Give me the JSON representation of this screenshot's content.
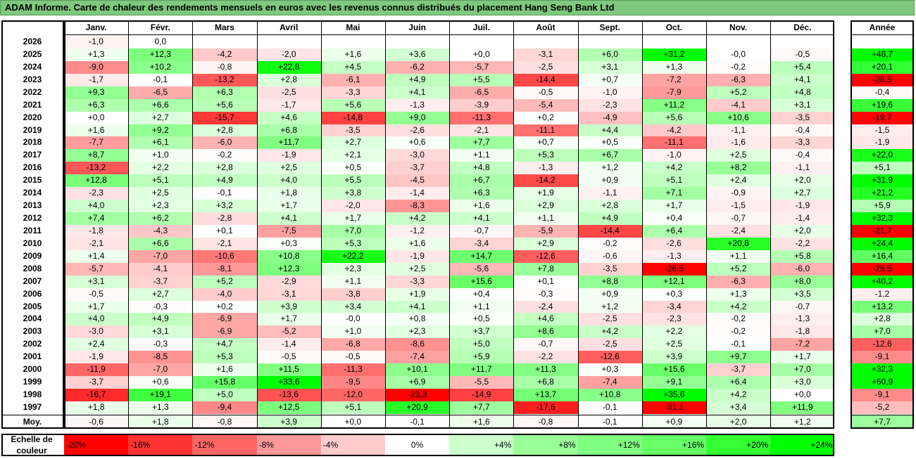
{
  "title": "ADAM Informe. Carte de chaleur des rendements mensuels en euros avec les revenus connus distribués du placement Hang Seng Bank Ltd",
  "chart_data": {
    "type": "heatmap",
    "title": "ADAM Informe. Carte de chaleur des rendements mensuels en euros avec les revenus connus distribués du placement Hang Seng Bank Ltd",
    "columns": [
      "Janv.",
      "Févr.",
      "Mars",
      "Avril",
      "Mai",
      "Juin",
      "Juil.",
      "Août",
      "Sept.",
      "Oct.",
      "Nov.",
      "Déc."
    ],
    "year_column": "Année",
    "rows": [
      {
        "year": "2026",
        "values": [
          "-1,0",
          "0,0",
          "",
          "",
          "",
          "",
          "",
          "",
          "",
          "",
          "",
          ""
        ],
        "annual": ""
      },
      {
        "year": "2025",
        "values": [
          "+1,3",
          "+12,3",
          "-4,2",
          "-2,0",
          "+1,6",
          "+3,6",
          "+0,0",
          "-3,1",
          "+6,0",
          "+31,2",
          "-0,0",
          "-0,5"
        ],
        "annual": "+48,7"
      },
      {
        "year": "2024",
        "values": [
          "-9,0",
          "+10,2",
          "-0,8",
          "+22,8",
          "+4,5",
          "-6,2",
          "-5,7",
          "-2,5",
          "+3,1",
          "+1,3",
          "-0,2",
          "+5,4"
        ],
        "annual": "+20,1"
      },
      {
        "year": "2023",
        "values": [
          "-1,7",
          "-0,1",
          "-13,2",
          "+2,8",
          "-6,1",
          "+4,9",
          "+5,5",
          "-14,4",
          "+0,7",
          "-7,2",
          "-6,3",
          "+4,1"
        ],
        "annual": "-28,5"
      },
      {
        "year": "2022",
        "values": [
          "+9,3",
          "-6,5",
          "+6,3",
          "-2,5",
          "-3,3",
          "+4,1",
          "-6,5",
          "-0,5",
          "-1,0",
          "-7,9",
          "+5,2",
          "+4,8"
        ],
        "annual": "-0,4"
      },
      {
        "year": "2021",
        "values": [
          "+6,3",
          "+6,6",
          "+5,6",
          "-1,7",
          "+5,6",
          "-1,3",
          "-3,9",
          "-5,4",
          "-2,3",
          "+11,2",
          "-4,1",
          "+3,1"
        ],
        "annual": "+19,6"
      },
      {
        "year": "2020",
        "values": [
          "+0,0",
          "+2,7",
          "-15,7",
          "+4,6",
          "-14,8",
          "+9,0",
          "-11,3",
          "+0,2",
          "-4,9",
          "+5,6",
          "+10,6",
          "-3,5"
        ],
        "annual": "-19,7"
      },
      {
        "year": "2019",
        "values": [
          "+1,6",
          "+9,2",
          "+2,8",
          "+6,8",
          "-3,5",
          "-2,6",
          "-2,1",
          "-11,1",
          "+4,4",
          "-4,2",
          "-1,1",
          "-0,4"
        ],
        "annual": "-1,5"
      },
      {
        "year": "2018",
        "values": [
          "-7,7",
          "+6,1",
          "-6,0",
          "+11,7",
          "+2,7",
          "+0,6",
          "+7,7",
          "+0,7",
          "+0,5",
          "-11,1",
          "-1,6",
          "-3,3"
        ],
        "annual": "-1,9"
      },
      {
        "year": "2017",
        "values": [
          "+8,7",
          "+1,0",
          "-0,2",
          "-1,9",
          "+2,1",
          "-3,0",
          "+1,1",
          "+5,3",
          "+6,7",
          "-1,0",
          "+2,5",
          "-0,4"
        ],
        "annual": "+22,0"
      },
      {
        "year": "2016",
        "values": [
          "-13,2",
          "+2,2",
          "+2,8",
          "+2,5",
          "+0,5",
          "-3,7",
          "+4,8",
          "-1,3",
          "+1,2",
          "+4,2",
          "+8,2",
          "-1,1"
        ],
        "annual": "+5,1"
      },
      {
        "year": "2015",
        "values": [
          "+12,8",
          "+5,1",
          "+4,9",
          "+4,0",
          "+5,5",
          "-4,5",
          "+6,7",
          "-14,2",
          "+0,9",
          "+5,1",
          "+2,4",
          "+2,0"
        ],
        "annual": "+31,9"
      },
      {
        "year": "2014",
        "values": [
          "-2,3",
          "+2,5",
          "-0,1",
          "+1,8",
          "+3,8",
          "-1,4",
          "+6,3",
          "+1,9",
          "-1,1",
          "+7,1",
          "-0,9",
          "+2,7"
        ],
        "annual": "+21,2"
      },
      {
        "year": "2013",
        "values": [
          "+4,0",
          "+2,3",
          "+3,2",
          "+1,7",
          "-2,0",
          "-8,3",
          "+1,6",
          "+2,9",
          "+2,8",
          "+1,7",
          "-1,5",
          "-1,9"
        ],
        "annual": "+5,9"
      },
      {
        "year": "2012",
        "values": [
          "+7,4",
          "+6,2",
          "-2,8",
          "+4,1",
          "+1,7",
          "+4,2",
          "+4,1",
          "+1,1",
          "+4,9",
          "+0,4",
          "-0,7",
          "-1,4"
        ],
        "annual": "+32,3"
      },
      {
        "year": "2011",
        "values": [
          "-1,8",
          "-4,3",
          "+0,1",
          "-7,5",
          "+7,0",
          "-1,2",
          "-0,7",
          "-5,9",
          "-14,4",
          "+6,4",
          "-2,4",
          "+2,0"
        ],
        "annual": "-21,7"
      },
      {
        "year": "2010",
        "values": [
          "-2,1",
          "+6,6",
          "-2,1",
          "+0,3",
          "+5,3",
          "+1,6",
          "-3,4",
          "+2,9",
          "-0,2",
          "-2,6",
          "+20,8",
          "-2,2"
        ],
        "annual": "+24,4"
      },
      {
        "year": "2009",
        "values": [
          "+1,4",
          "-7,0",
          "-10,6",
          "+10,8",
          "+22,2",
          "-1,9",
          "+14,7",
          "-12,6",
          "-0,6",
          "-1,3",
          "+1,1",
          "+5,8"
        ],
        "annual": "+16,4"
      },
      {
        "year": "2008",
        "values": [
          "-5,7",
          "-4,1",
          "-8,1",
          "+12,3",
          "+2,3",
          "+2,5",
          "-5,6",
          "+7,8",
          "-3,5",
          "-26,5",
          "+5,2",
          "-6,0"
        ],
        "annual": "-29,5"
      },
      {
        "year": "2007",
        "values": [
          "+3,1",
          "-3,7",
          "+5,2",
          "-2,9",
          "+1,1",
          "-3,3",
          "+15,6",
          "+0,1",
          "+8,8",
          "+12,1",
          "-6,3",
          "+8,0"
        ],
        "annual": "+40,2"
      },
      {
        "year": "2006",
        "values": [
          "-0,5",
          "+2,7",
          "-4,0",
          "-3,1",
          "-3,8",
          "+1,9",
          "+0,4",
          "-0,3",
          "+0,9",
          "+0,3",
          "+1,3",
          "+3,5"
        ],
        "annual": "-1,2"
      },
      {
        "year": "2005",
        "values": [
          "+1,7",
          "-0,3",
          "+0,2",
          "+3,9",
          "+3,4",
          "+4,1",
          "+1,1",
          "-2,4",
          "+1,2",
          "-3,4",
          "+4,2",
          "-0,7"
        ],
        "annual": "+13,2"
      },
      {
        "year": "2004",
        "values": [
          "+4,0",
          "+4,9",
          "-6,9",
          "+1,7",
          "-0,0",
          "+0,8",
          "+0,5",
          "+4,6",
          "-2,5",
          "-2,3",
          "-0,2",
          "-1,3"
        ],
        "annual": "+2,8"
      },
      {
        "year": "2003",
        "values": [
          "-3,0",
          "+3,1",
          "-6,9",
          "-5,2",
          "+1,0",
          "+2,3",
          "+3,7",
          "+8,6",
          "+4,2",
          "+2,2",
          "-0,2",
          "-1,8"
        ],
        "annual": "+7,0"
      },
      {
        "year": "2002",
        "values": [
          "+2,4",
          "-0,3",
          "+4,7",
          "-1,4",
          "-6,8",
          "-8,6",
          "+5,0",
          "-0,7",
          "-2,5",
          "+2,5",
          "-0,1",
          "-7,2"
        ],
        "annual": "-12,6"
      },
      {
        "year": "2001",
        "values": [
          "-1,9",
          "-8,5",
          "+5,3",
          "-0,5",
          "-0,5",
          "-7,4",
          "+5,9",
          "-2,2",
          "-12,6",
          "+3,9",
          "+9,7",
          "+1,7"
        ],
        "annual": "-9,1"
      },
      {
        "year": "2000",
        "values": [
          "-11,9",
          "-7,0",
          "+1,6",
          "+11,5",
          "-11,3",
          "+10,1",
          "+11,7",
          "+11,3",
          "+0,3",
          "+15,6",
          "-3,7",
          "+7,0"
        ],
        "annual": "+32,3"
      },
      {
        "year": "1999",
        "values": [
          "-3,7",
          "+0,6",
          "+15,8",
          "+33,6",
          "-9,5",
          "+6,9",
          "-5,5",
          "+6,8",
          "-7,4",
          "+9,1",
          "+6,4",
          "+3,0"
        ],
        "annual": "+60,9"
      },
      {
        "year": "1998",
        "values": [
          "-16,7",
          "+19,1",
          "+5,0",
          "-13,6",
          "-12,0",
          "-23,3",
          "-14,9",
          "+13,7",
          "+10,8",
          "+35,6",
          "+4,2",
          "+0,0"
        ],
        "annual": "-9,1"
      },
      {
        "year": "1997",
        "values": [
          "+1,8",
          "+1,3",
          "-9,4",
          "+12,5",
          "+5,1",
          "+20,9",
          "+7,7",
          "-17,6",
          "-0,1",
          "-31,1",
          "+3,4",
          "+11,9"
        ],
        "annual": "-5,2"
      }
    ],
    "average": {
      "label": "Moy.",
      "values": [
        "-0,6",
        "+1,8",
        "-0,8",
        "+3,9",
        "+0,0",
        "-0,1",
        "+1,6",
        "-0,8",
        "-0,1",
        "+0,9",
        "+2,0",
        "+1,2"
      ],
      "annual": "+7,7"
    },
    "color_scale": {
      "label_line1": "Echelle de",
      "label_line2": "couleur",
      "stops": [
        {
          "label": "-20%",
          "value": -20,
          "color": "#ff0000"
        },
        {
          "label": "-16%",
          "value": -16,
          "color": "#ff3333"
        },
        {
          "label": "-12%",
          "value": -12,
          "color": "#ff6666"
        },
        {
          "label": "-8%",
          "value": -8,
          "color": "#ff9999"
        },
        {
          "label": "-4%",
          "value": -4,
          "color": "#ffcccc"
        },
        {
          "label": "0%",
          "value": 0,
          "color": "#ffffff"
        },
        {
          "label": "+4%",
          "value": 4,
          "color": "#ccffcc"
        },
        {
          "label": "+8%",
          "value": 8,
          "color": "#99ff99"
        },
        {
          "label": "+12%",
          "value": 12,
          "color": "#80ff80"
        },
        {
          "label": "+16%",
          "value": 16,
          "color": "#66ff66"
        },
        {
          "label": "+20%",
          "value": 20,
          "color": "#33ff33"
        },
        {
          "label": "+24%",
          "value": 24,
          "color": "#00ff00"
        }
      ]
    }
  }
}
